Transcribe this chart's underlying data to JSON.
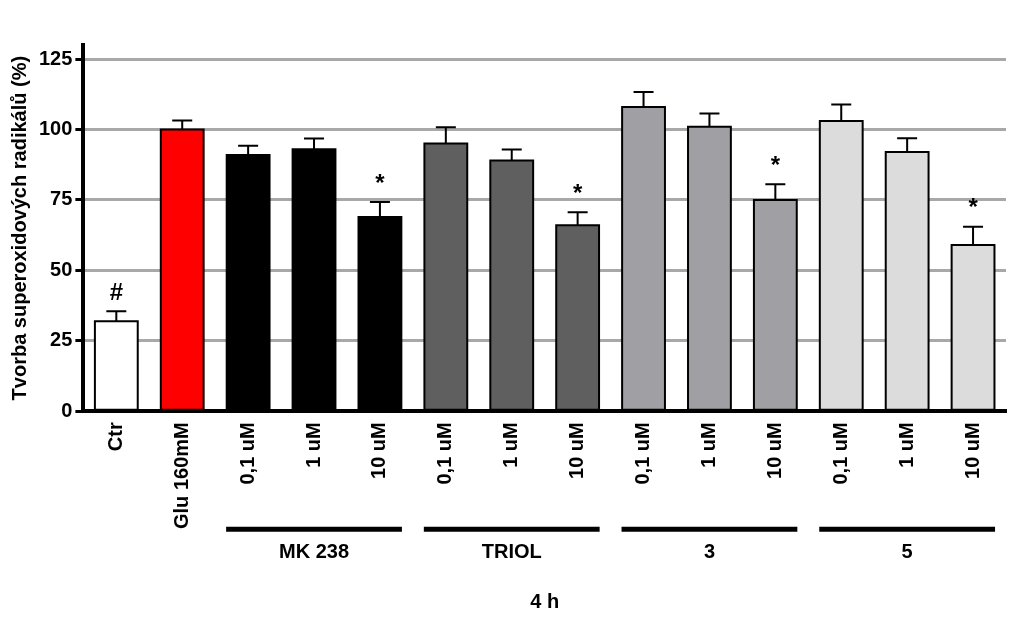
{
  "chart_data": {
    "type": "bar",
    "categories": [
      "Ctr",
      "Glu 160mM",
      "0,1 uM",
      "1 uM",
      "10 uM",
      "0,1 uM",
      "1 uM",
      "10 uM",
      "0,1 uM",
      "1 uM",
      "10 uM",
      "0,1 uM",
      "1 uM",
      "10 uM"
    ],
    "values": [
      32,
      100,
      91,
      93,
      69,
      95,
      89,
      66,
      108,
      101,
      75,
      103,
      92,
      59
    ],
    "errors": [
      3.5,
      3.2,
      3.2,
      3.8,
      5.3,
      5.8,
      3.9,
      4.6,
      5.3,
      4.7,
      5.6,
      5.9,
      4.9,
      6.5
    ],
    "colors": [
      "#ffffff",
      "#ff0000",
      "#000000",
      "#000000",
      "#000000",
      "#5f5f5f",
      "#5f5f5f",
      "#5f5f5f",
      "#a0a0a4",
      "#a0a0a4",
      "#a0a0a4",
      "#dcdcdc",
      "#dcdcdc",
      "#dcdcdc"
    ],
    "value_labels": [
      "#",
      null,
      null,
      null,
      "*",
      null,
      null,
      "*",
      null,
      null,
      "*",
      null,
      null,
      "*"
    ],
    "annotations": [
      "MK 238",
      "TRIOL",
      "3",
      "5"
    ],
    "xlabel": "4 h",
    "ylabel": "Tvorba superoxidových radikálů (%)",
    "ylim": [
      0,
      130
    ],
    "yticks": [
      0,
      25,
      50,
      75,
      100,
      125
    ],
    "grid": "y",
    "legend": false
  }
}
